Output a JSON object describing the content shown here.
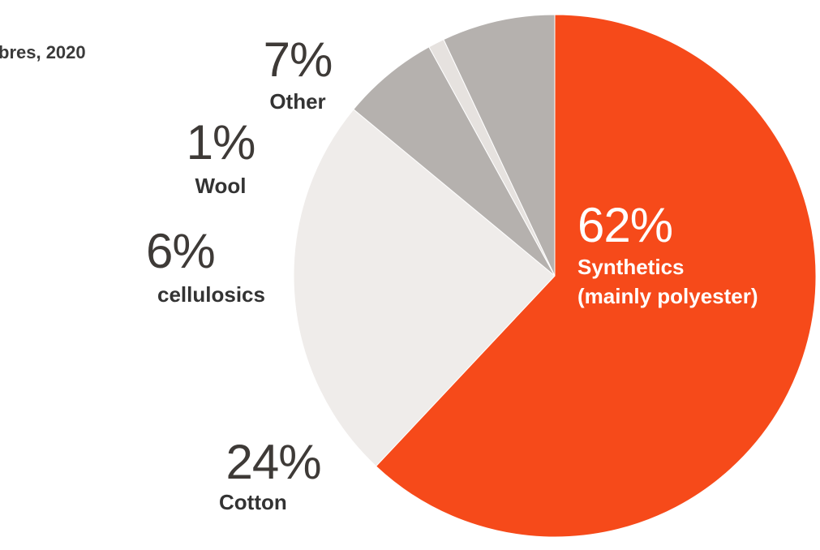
{
  "title": "bres, 2020",
  "chart_data": {
    "type": "pie",
    "title": "bres, 2020",
    "slices": [
      {
        "label": "Synthetics (mainly polyester)",
        "line1": "Synthetics",
        "line2": "(mainly polyester)",
        "value": 62,
        "value_label": "62%",
        "color": "#f64a1a"
      },
      {
        "label": "Cotton",
        "value": 24,
        "value_label": "24%",
        "color": "#efecea"
      },
      {
        "label": "cellulosics",
        "value": 6,
        "value_label": "6%",
        "color": "#b5b1ae"
      },
      {
        "label": "Wool",
        "value": 1,
        "value_label": "1%",
        "color": "#e6e2df"
      },
      {
        "label": "Other",
        "value": 7,
        "value_label": "7%",
        "color": "#b5b1ae"
      }
    ],
    "start_direction": "top, clockwise"
  }
}
